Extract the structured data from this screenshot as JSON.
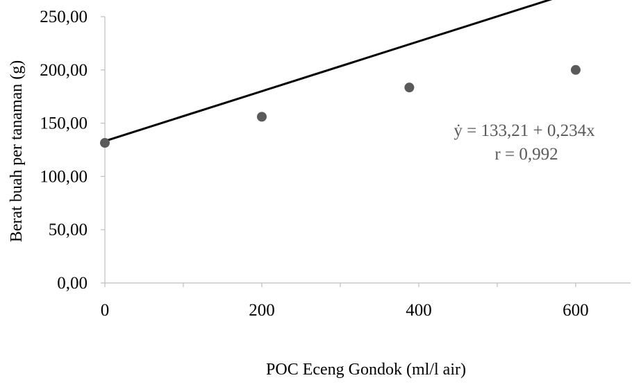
{
  "chart_data": {
    "type": "scatter",
    "title": "",
    "xlabel": "POC Eceng Gondok (ml/l air)",
    "ylabel": "Berat buah per tanaman (g)",
    "xlim": [
      0,
      670
    ],
    "ylim": [
      0,
      250
    ],
    "x_ticks": [
      "0",
      "200",
      "400",
      "600"
    ],
    "y_ticks": [
      "0,00",
      "50,00",
      "100,00",
      "150,00",
      "200,00",
      "250,00"
    ],
    "grid": false,
    "legend": "none",
    "points": [
      {
        "x": 0,
        "y": 131.5
      },
      {
        "x": 200,
        "y": 156.0
      },
      {
        "x": 388,
        "y": 183.5
      },
      {
        "x": 600,
        "y": 200.0
      }
    ],
    "trendline": {
      "intercept": 133.21,
      "slope": 0.234,
      "x_range": [
        0,
        600
      ]
    },
    "annotations": [
      "ẏ = 133,21 + 0,234x",
      "r = 0,992"
    ],
    "colors": {
      "points": "#5a5a5a",
      "trendline": "#000000",
      "axis": "#bfbfbf",
      "annotation": "#595959"
    }
  }
}
